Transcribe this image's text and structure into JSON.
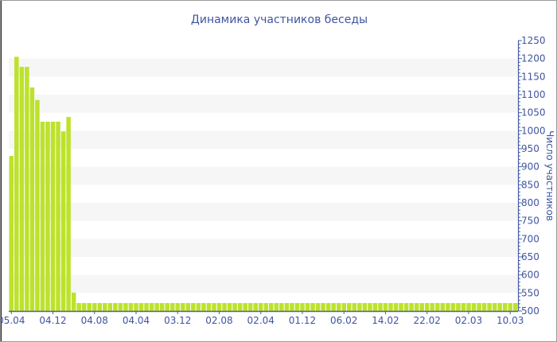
{
  "chart_data": {
    "type": "bar",
    "title": "Динамика участников беседы",
    "xlabel": "",
    "ylabel": "Число участников",
    "ylim": [
      500,
      1250
    ],
    "y_ticks": [
      500,
      550,
      600,
      650,
      700,
      750,
      800,
      850,
      900,
      950,
      1000,
      1050,
      1100,
      1150,
      1200,
      1250
    ],
    "x_tick_labels": [
      "05.04",
      "04.12",
      "04.08",
      "04.04",
      "03.12",
      "02.08",
      "02.04",
      "01.12",
      "06.02",
      "14.02",
      "22.02",
      "02.03",
      "10.03"
    ],
    "y_axis_position": "right",
    "grid": "alternating horizontal bands",
    "bar_color": "#bde22c",
    "axis_color": "#4a5fa5",
    "values": [
      930,
      1205,
      1177,
      1177,
      1120,
      1085,
      1025,
      1025,
      1025,
      1025,
      998,
      1038,
      551,
      522,
      522,
      522,
      522,
      522,
      522,
      522,
      522,
      522,
      522,
      522,
      522,
      522,
      522,
      522,
      522,
      522,
      522,
      522,
      522,
      522,
      522,
      522,
      522,
      522,
      522,
      522,
      522,
      522,
      522,
      522,
      522,
      522,
      522,
      522,
      522,
      522,
      522,
      522,
      522,
      522,
      522,
      522,
      522,
      522,
      522,
      522,
      522,
      522,
      522,
      522,
      522,
      522,
      522,
      522,
      522,
      522,
      522,
      522,
      522,
      522,
      522,
      522,
      522,
      522,
      522,
      522,
      522,
      522,
      522,
      522,
      522,
      522,
      522,
      522,
      522,
      522,
      522,
      522,
      522,
      522,
      522,
      522,
      522,
      522
    ]
  }
}
